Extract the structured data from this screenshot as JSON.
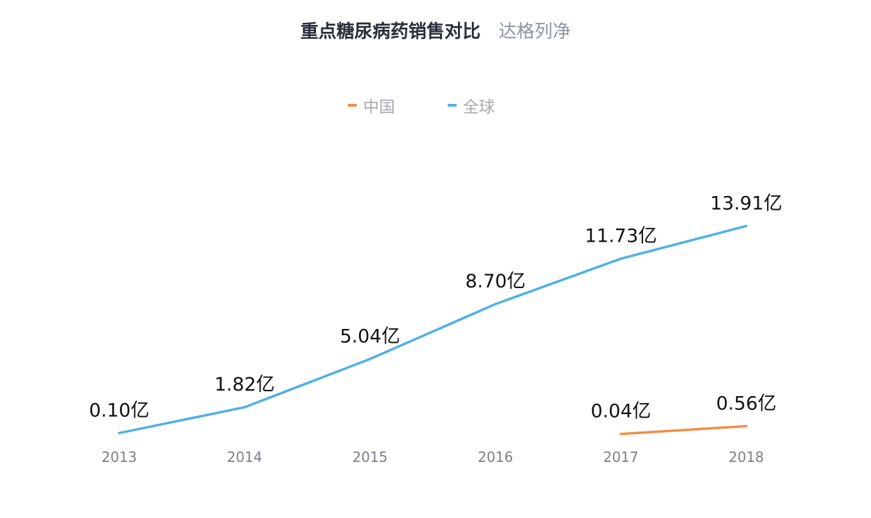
{
  "title": {
    "main": "重点糖尿病药销售对比",
    "sub": "达格列净"
  },
  "legend": [
    {
      "label": "中国",
      "color": "#f48d45"
    },
    {
      "label": "全球",
      "color": "#4fb0e8"
    }
  ],
  "chart_data": {
    "type": "line",
    "title": "重点糖尿病药销售对比",
    "subtitle": "达格列净",
    "categories": [
      "2013",
      "2014",
      "2015",
      "2016",
      "2017",
      "2018"
    ],
    "unit": "亿",
    "series": [
      {
        "name": "中国",
        "color": "#f48d45",
        "values": [
          null,
          null,
          null,
          null,
          0.04,
          0.56
        ],
        "labels": [
          "",
          "",
          "",
          "",
          "0.04亿",
          "0.56亿"
        ]
      },
      {
        "name": "全球",
        "color": "#4fb0e8",
        "values": [
          0.1,
          1.82,
          5.04,
          8.7,
          11.73,
          13.91
        ],
        "labels": [
          "0.10亿",
          "1.82亿",
          "5.04亿",
          "8.70亿",
          "11.73亿",
          "13.91亿"
        ]
      }
    ],
    "legend_position": "top-center",
    "grid": false,
    "y_axis_visible": false
  }
}
